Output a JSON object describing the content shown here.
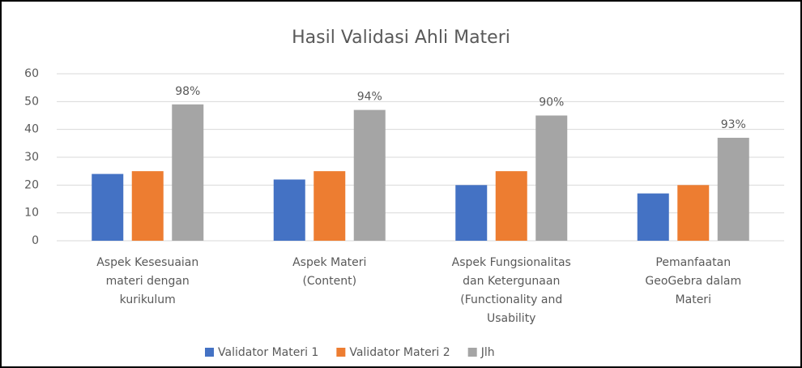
{
  "chart_data": {
    "type": "bar",
    "title": "Hasil Validasi Ahli Materi",
    "categories": [
      [
        "Aspek Kesesuaian",
        "materi dengan",
        "kurikulum"
      ],
      [
        "Aspek Materi",
        "(Content)"
      ],
      [
        "Aspek Fungsionalitas",
        "dan Ketergunaan",
        "(Functionality and",
        "Usability"
      ],
      [
        "Pemanfaatan",
        "GeoGebra dalam",
        "Materi"
      ]
    ],
    "series": [
      {
        "name": "Validator Materi 1",
        "color": "#4472c4",
        "values": [
          24,
          22,
          20,
          17
        ]
      },
      {
        "name": "Validator Materi 2",
        "color": "#ed7d31",
        "values": [
          25,
          25,
          25,
          20
        ]
      },
      {
        "name": "Jlh",
        "color": "#a5a5a5",
        "values": [
          49,
          47,
          45,
          37
        ],
        "annotations": [
          "98%",
          "94%",
          "90%",
          "93%"
        ]
      }
    ],
    "ylim": [
      0,
      60
    ],
    "yticks": [
      0,
      10,
      20,
      30,
      40,
      50,
      60
    ],
    "grid": true,
    "legend": "bottom"
  }
}
